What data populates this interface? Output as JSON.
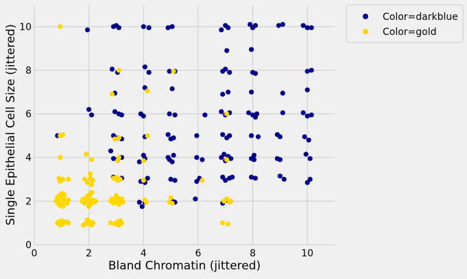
{
  "chart_data": {
    "type": "scatter",
    "title": "",
    "xlabel": "Bland Chromatin (jittered)",
    "ylabel": "Single Epithelial Cell Size (jittered)",
    "xlim": [
      0,
      11
    ],
    "ylim": [
      0,
      11
    ],
    "x_ticks": [
      0,
      2,
      4,
      6,
      8,
      10
    ],
    "y_ticks": [
      0,
      2,
      4,
      6,
      8,
      10
    ],
    "grid": true,
    "legend_position": "outside top-right",
    "series": [
      {
        "name": "Color=darkblue",
        "color": "#00008b",
        "points": [
          [
            1.95,
            9.85
          ],
          [
            2.9,
            10.0
          ],
          [
            3.0,
            10.05
          ],
          [
            3.1,
            9.95
          ],
          [
            4.0,
            10.0
          ],
          [
            4.2,
            9.95
          ],
          [
            4.9,
            9.95
          ],
          [
            5.05,
            10.0
          ],
          [
            6.85,
            9.85
          ],
          [
            7.0,
            10.05
          ],
          [
            7.1,
            9.95
          ],
          [
            7.9,
            10.1
          ],
          [
            8.0,
            9.95
          ],
          [
            8.1,
            10.05
          ],
          [
            8.95,
            10.05
          ],
          [
            9.1,
            10.1
          ],
          [
            9.85,
            10.05
          ],
          [
            10.0,
            9.95
          ],
          [
            10.15,
            9.95
          ],
          [
            7.05,
            8.9
          ],
          [
            7.95,
            8.95
          ],
          [
            2.85,
            8.05
          ],
          [
            3.05,
            7.9
          ],
          [
            4.05,
            8.15
          ],
          [
            4.2,
            7.9
          ],
          [
            4.95,
            7.95
          ],
          [
            5.15,
            7.95
          ],
          [
            6.9,
            7.95
          ],
          [
            7.0,
            8.05
          ],
          [
            7.15,
            7.9
          ],
          [
            8.0,
            7.9
          ],
          [
            8.1,
            7.85
          ],
          [
            10.0,
            7.95
          ],
          [
            10.15,
            8.0
          ],
          [
            4.05,
            7.2
          ],
          [
            5.05,
            7.15
          ],
          [
            10.0,
            7.1
          ],
          [
            2.95,
            6.95
          ],
          [
            6.9,
            6.9
          ],
          [
            7.1,
            7.0
          ],
          [
            7.95,
            7.0
          ],
          [
            9.1,
            6.95
          ],
          [
            2.0,
            6.2
          ],
          [
            2.1,
            5.95
          ],
          [
            2.95,
            6.1
          ],
          [
            3.1,
            6.0
          ],
          [
            3.2,
            5.95
          ],
          [
            3.9,
            6.0
          ],
          [
            4.0,
            5.9
          ],
          [
            4.95,
            6.0
          ],
          [
            5.15,
            5.95
          ],
          [
            6.25,
            5.95
          ],
          [
            6.85,
            6.1
          ],
          [
            7.0,
            5.95
          ],
          [
            7.15,
            6.05
          ],
          [
            7.85,
            6.05
          ],
          [
            8.0,
            5.95
          ],
          [
            8.15,
            6.0
          ],
          [
            8.1,
            5.85
          ],
          [
            9.1,
            6.05
          ],
          [
            9.85,
            6.05
          ],
          [
            10.0,
            5.9
          ],
          [
            10.15,
            5.95
          ],
          [
            0.85,
            5.0
          ],
          [
            2.9,
            5.0
          ],
          [
            3.05,
            4.9
          ],
          [
            3.2,
            4.85
          ],
          [
            4.05,
            4.95
          ],
          [
            4.9,
            5.05
          ],
          [
            5.1,
            4.9
          ],
          [
            5.0,
            4.85
          ],
          [
            5.95,
            5.0
          ],
          [
            6.9,
            5.05
          ],
          [
            7.05,
            4.9
          ],
          [
            7.15,
            5.0
          ],
          [
            7.95,
            5.0
          ],
          [
            8.2,
            4.95
          ],
          [
            8.9,
            5.05
          ],
          [
            9.0,
            4.95
          ],
          [
            9.9,
            4.95
          ],
          [
            10.05,
            4.8
          ],
          [
            2.8,
            4.3
          ],
          [
            2.9,
            3.95
          ],
          [
            3.05,
            3.9
          ],
          [
            3.2,
            4.0
          ],
          [
            3.85,
            3.8
          ],
          [
            4.0,
            4.1
          ],
          [
            4.05,
            3.95
          ],
          [
            4.9,
            4.0
          ],
          [
            4.95,
            3.9
          ],
          [
            5.1,
            4.1
          ],
          [
            5.05,
            3.8
          ],
          [
            5.95,
            4.0
          ],
          [
            6.15,
            3.9
          ],
          [
            6.85,
            4.0
          ],
          [
            6.95,
            4.15
          ],
          [
            7.1,
            4.05
          ],
          [
            7.0,
            3.85
          ],
          [
            7.2,
            3.95
          ],
          [
            7.95,
            3.95
          ],
          [
            8.05,
            4.1
          ],
          [
            8.05,
            3.9
          ],
          [
            8.9,
            3.95
          ],
          [
            9.0,
            3.9
          ],
          [
            9.95,
            4.15
          ],
          [
            10.1,
            3.95
          ],
          [
            2.9,
            3.1
          ],
          [
            3.05,
            3.0
          ],
          [
            3.2,
            3.05
          ],
          [
            3.9,
            2.9
          ],
          [
            4.05,
            2.85
          ],
          [
            4.15,
            3.05
          ],
          [
            5.0,
            3.0
          ],
          [
            5.15,
            2.95
          ],
          [
            5.95,
            2.9
          ],
          [
            6.05,
            3.05
          ],
          [
            6.9,
            3.1
          ],
          [
            7.0,
            2.95
          ],
          [
            7.15,
            3.05
          ],
          [
            7.25,
            3.1
          ],
          [
            7.95,
            3.1
          ],
          [
            8.1,
            3.05
          ],
          [
            9.0,
            3.15
          ],
          [
            9.15,
            3.0
          ],
          [
            10.0,
            2.85
          ],
          [
            10.1,
            3.0
          ],
          [
            2.85,
            2.0
          ],
          [
            3.85,
            1.95
          ],
          [
            3.95,
            1.75
          ],
          [
            4.05,
            1.95
          ],
          [
            5.05,
            2.0
          ],
          [
            5.15,
            1.95
          ],
          [
            5.9,
            2.1
          ],
          [
            6.9,
            1.9
          ],
          [
            7.05,
            2.05
          ]
        ]
      },
      {
        "name": "Color=gold",
        "color": "#ffd700",
        "points": [
          [
            0.95,
            10.0
          ],
          [
            3.1,
            8.0
          ],
          [
            5.1,
            7.95
          ],
          [
            2.85,
            6.9
          ],
          [
            4.15,
            7.05
          ],
          [
            7.05,
            6.0
          ],
          [
            0.95,
            5.0
          ],
          [
            1.05,
            5.05
          ],
          [
            2.95,
            4.85
          ],
          [
            3.1,
            4.9
          ],
          [
            4.15,
            5.0
          ],
          [
            0.95,
            4.0
          ],
          [
            1.9,
            4.15
          ],
          [
            2.1,
            3.9
          ],
          [
            3.05,
            3.85
          ],
          [
            3.1,
            4.0
          ],
          [
            4.0,
            3.85
          ],
          [
            7.05,
            3.9
          ],
          [
            0.9,
            3.05
          ],
          [
            0.95,
            2.9
          ],
          [
            1.05,
            3.0
          ],
          [
            1.25,
            3.0
          ],
          [
            1.85,
            3.0
          ],
          [
            1.95,
            2.85
          ],
          [
            2.05,
            3.05
          ],
          [
            2.15,
            2.95
          ],
          [
            2.05,
            3.25
          ],
          [
            2.1,
            2.75
          ],
          [
            2.9,
            3.05
          ],
          [
            3.0,
            3.1
          ],
          [
            3.05,
            2.95
          ],
          [
            3.15,
            3.0
          ],
          [
            4.0,
            2.95
          ],
          [
            6.15,
            2.95
          ],
          [
            0.8,
            2.0
          ],
          [
            0.85,
            2.15
          ],
          [
            0.9,
            1.85
          ],
          [
            0.95,
            2.05
          ],
          [
            1.0,
            2.2
          ],
          [
            1.05,
            1.95
          ],
          [
            1.1,
            2.1
          ],
          [
            1.15,
            2.0
          ],
          [
            1.2,
            1.9
          ],
          [
            1.25,
            2.05
          ],
          [
            0.95,
            1.8
          ],
          [
            1.05,
            1.75
          ],
          [
            1.0,
            2.35
          ],
          [
            1.1,
            2.3
          ],
          [
            0.9,
            2.25
          ],
          [
            1.75,
            2.0
          ],
          [
            1.8,
            2.1
          ],
          [
            1.85,
            1.9
          ],
          [
            1.9,
            2.05
          ],
          [
            1.95,
            1.95
          ],
          [
            2.0,
            2.1
          ],
          [
            2.05,
            2.0
          ],
          [
            2.1,
            1.9
          ],
          [
            2.15,
            2.05
          ],
          [
            2.2,
            1.95
          ],
          [
            2.25,
            2.0
          ],
          [
            1.95,
            2.25
          ],
          [
            2.05,
            2.3
          ],
          [
            2.0,
            1.75
          ],
          [
            2.1,
            2.4
          ],
          [
            2.8,
            2.0
          ],
          [
            2.85,
            2.1
          ],
          [
            2.9,
            1.9
          ],
          [
            2.95,
            2.05
          ],
          [
            3.0,
            1.95
          ],
          [
            3.05,
            2.15
          ],
          [
            3.1,
            1.85
          ],
          [
            3.15,
            2.0
          ],
          [
            3.2,
            2.1
          ],
          [
            3.25,
            1.95
          ],
          [
            3.0,
            2.25
          ],
          [
            4.05,
            2.05
          ],
          [
            4.1,
            1.95
          ],
          [
            4.95,
            1.95
          ],
          [
            5.0,
            2.15
          ],
          [
            5.05,
            1.9
          ],
          [
            6.95,
            2.0
          ],
          [
            7.05,
            2.1
          ],
          [
            7.15,
            1.95
          ],
          [
            7.2,
            2.0
          ],
          [
            0.85,
            1.0
          ],
          [
            0.95,
            0.9
          ],
          [
            1.0,
            1.1
          ],
          [
            1.05,
            0.95
          ],
          [
            1.15,
            1.05
          ],
          [
            1.25,
            1.0
          ],
          [
            0.9,
            1.05
          ],
          [
            1.8,
            0.9
          ],
          [
            1.9,
            1.0
          ],
          [
            1.95,
            1.15
          ],
          [
            2.0,
            0.95
          ],
          [
            2.05,
            1.05
          ],
          [
            2.1,
            0.9
          ],
          [
            2.15,
            1.0
          ],
          [
            2.8,
            1.0
          ],
          [
            2.95,
            0.95
          ],
          [
            3.05,
            1.05
          ],
          [
            3.1,
            0.9
          ],
          [
            3.2,
            1.0
          ],
          [
            3.15,
            1.1
          ],
          [
            6.9,
            1.0
          ],
          [
            7.1,
            0.95
          ]
        ]
      }
    ]
  }
}
